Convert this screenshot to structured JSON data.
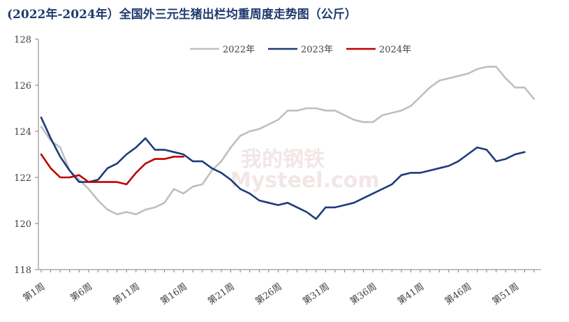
{
  "chart_data": {
    "type": "line",
    "title": "(2022年-2024年）全国外三元生猪出栏均重周度走势图（公斤）",
    "watermark": "我的钢铁 Mysteel.com",
    "ylim": [
      118,
      128
    ],
    "yticks": [
      118,
      120,
      122,
      124,
      126,
      128
    ],
    "x_tick_labels": [
      "第1周",
      "第6周",
      "第11周",
      "第16周",
      "第21周",
      "第26周",
      "第31周",
      "第36周",
      "第41周",
      "第46周",
      "第51周"
    ],
    "x_tick_weeks": [
      1,
      6,
      11,
      16,
      21,
      26,
      31,
      36,
      41,
      46,
      51
    ],
    "x_range": [
      1,
      53
    ],
    "legend_placement": "top-center",
    "series": [
      {
        "name": "2022年",
        "color": "#bfbfbf",
        "values": [
          124.2,
          123.6,
          123.3,
          122.3,
          121.9,
          121.5,
          121.0,
          120.6,
          120.4,
          120.5,
          120.4,
          120.6,
          120.7,
          120.9,
          121.5,
          121.3,
          121.6,
          121.7,
          122.3,
          122.7,
          123.3,
          123.8,
          124.0,
          124.1,
          124.3,
          124.5,
          124.9,
          124.9,
          125.0,
          125.0,
          124.9,
          124.9,
          124.7,
          124.5,
          124.4,
          124.4,
          124.7,
          124.8,
          124.9,
          125.1,
          125.5,
          125.9,
          126.2,
          126.3,
          126.4,
          126.5,
          126.7,
          126.8,
          126.8,
          126.3,
          125.9,
          125.9,
          125.4
        ]
      },
      {
        "name": "2023年",
        "color": "#1f3a7d",
        "values": [
          124.6,
          123.7,
          122.9,
          122.3,
          121.8,
          121.8,
          121.9,
          122.4,
          122.6,
          123.0,
          123.3,
          123.7,
          123.2,
          123.2,
          123.1,
          123.0,
          122.7,
          122.7,
          122.4,
          122.2,
          121.9,
          121.5,
          121.3,
          121.0,
          120.9,
          120.8,
          120.9,
          120.7,
          120.5,
          120.2,
          120.7,
          120.7,
          120.8,
          120.9,
          121.1,
          121.3,
          121.5,
          121.7,
          122.1,
          122.2,
          122.2,
          122.3,
          122.4,
          122.5,
          122.7,
          123.0,
          123.3,
          123.2,
          122.7,
          122.8,
          123.0,
          123.1
        ]
      },
      {
        "name": "2024年",
        "color": "#c00000",
        "values": [
          123.0,
          122.4,
          122.0,
          122.0,
          122.1,
          121.8,
          121.8,
          121.8,
          121.8,
          121.7,
          122.2,
          122.6,
          122.8,
          122.8,
          122.9,
          122.9
        ]
      }
    ]
  }
}
